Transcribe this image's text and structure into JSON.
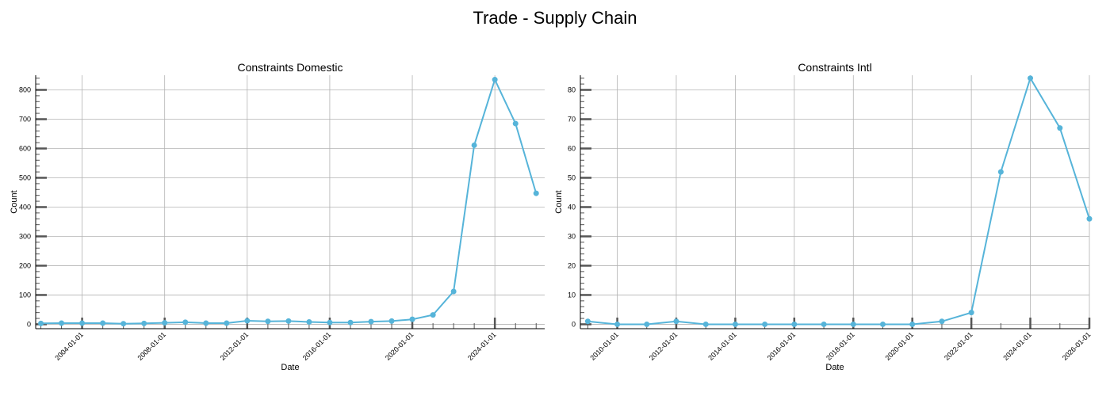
{
  "figure": {
    "title": "Trade - Supply Chain"
  },
  "colors": {
    "line": "#56b4d9",
    "grid": "#b3b3b3",
    "axis": "#000000",
    "tick": "#555555"
  },
  "chart_data": [
    {
      "type": "line",
      "title": "Constraints Domestic",
      "xlabel": "Date",
      "ylabel": "Count",
      "x_ticks": [
        "2004-01-01",
        "2008-01-01",
        "2012-01-01",
        "2016-01-01",
        "2020-01-01",
        "2024-01-01"
      ],
      "y_ticks": [
        0,
        100,
        200,
        300,
        400,
        500,
        600,
        700,
        800
      ],
      "xlim": [
        "2001-10-01",
        "2026-06-01"
      ],
      "ylim": [
        -15,
        850
      ],
      "grid": true,
      "series": [
        {
          "x": [
            "2002-01-01",
            "2003-01-01",
            "2004-01-01",
            "2005-01-01",
            "2006-01-01",
            "2007-01-01",
            "2008-01-01",
            "2009-01-01",
            "2010-01-01",
            "2011-01-01",
            "2012-01-01",
            "2013-01-01",
            "2014-01-01",
            "2015-01-01",
            "2016-01-01",
            "2017-01-01",
            "2018-01-01",
            "2019-01-01",
            "2020-01-01",
            "2021-01-01",
            "2022-01-01",
            "2023-01-01",
            "2024-01-01",
            "2025-01-01",
            "2026-01-01"
          ],
          "y": [
            3,
            4,
            4,
            4,
            2,
            3,
            5,
            7,
            4,
            4,
            12,
            10,
            11,
            8,
            6,
            6,
            9,
            11,
            17,
            32,
            112,
            611,
            835,
            685,
            447
          ]
        }
      ]
    },
    {
      "type": "line",
      "title": "Constraints Intl",
      "xlabel": "Date",
      "ylabel": "Count",
      "x_ticks": [
        "2010-01-01",
        "2012-01-01",
        "2014-01-01",
        "2016-01-01",
        "2018-01-01",
        "2020-01-01",
        "2022-01-01",
        "2024-01-01",
        "2026-01-01"
      ],
      "y_ticks": [
        0,
        10,
        20,
        30,
        40,
        50,
        60,
        70,
        80
      ],
      "xlim": [
        "2008-10-01",
        "2026-01-01"
      ],
      "ylim": [
        -1.5,
        85
      ],
      "grid": true,
      "series": [
        {
          "x": [
            "2009-01-01",
            "2010-01-01",
            "2011-01-01",
            "2012-01-01",
            "2013-01-01",
            "2014-01-01",
            "2015-01-01",
            "2016-01-01",
            "2017-01-01",
            "2018-01-01",
            "2019-01-01",
            "2020-01-01",
            "2021-01-01",
            "2022-01-01",
            "2023-01-01",
            "2024-01-01",
            "2025-01-01",
            "2026-01-01"
          ],
          "y": [
            1,
            0,
            0,
            1,
            0,
            0,
            0,
            0,
            0,
            0,
            0,
            0,
            1,
            4,
            52,
            84,
            67,
            36
          ]
        }
      ]
    }
  ]
}
